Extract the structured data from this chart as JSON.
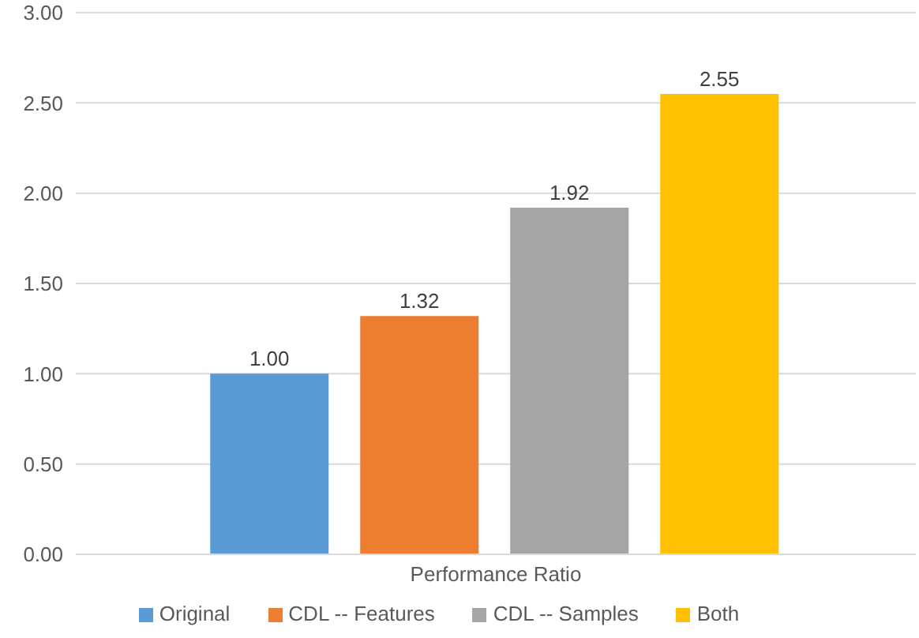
{
  "chart_data": {
    "type": "bar",
    "categories": [
      "Performance Ratio"
    ],
    "series": [
      {
        "name": "Original",
        "color": "#5b9bd5",
        "values": [
          1.0
        ],
        "value_labels": [
          "1.00"
        ]
      },
      {
        "name": "CDL -- Features",
        "color": "#ed7d31",
        "values": [
          1.32
        ],
        "value_labels": [
          "1.32"
        ]
      },
      {
        "name": "CDL -- Samples",
        "color": "#a5a5a5",
        "values": [
          1.92
        ],
        "value_labels": [
          "1.92"
        ]
      },
      {
        "name": "Both",
        "color": "#ffc000",
        "values": [
          2.55
        ],
        "value_labels": [
          "2.55"
        ]
      }
    ],
    "ylim": [
      0,
      3
    ],
    "yticks": [
      {
        "value": 0,
        "label": "0.00"
      },
      {
        "value": 0.5,
        "label": "0.50"
      },
      {
        "value": 1,
        "label": "1.00"
      },
      {
        "value": 1.5,
        "label": "1.50"
      },
      {
        "value": 2,
        "label": "2.00"
      },
      {
        "value": 2.5,
        "label": "2.50"
      },
      {
        "value": 3,
        "label": "3.00"
      }
    ],
    "grid": "y",
    "legend": "bottom"
  }
}
